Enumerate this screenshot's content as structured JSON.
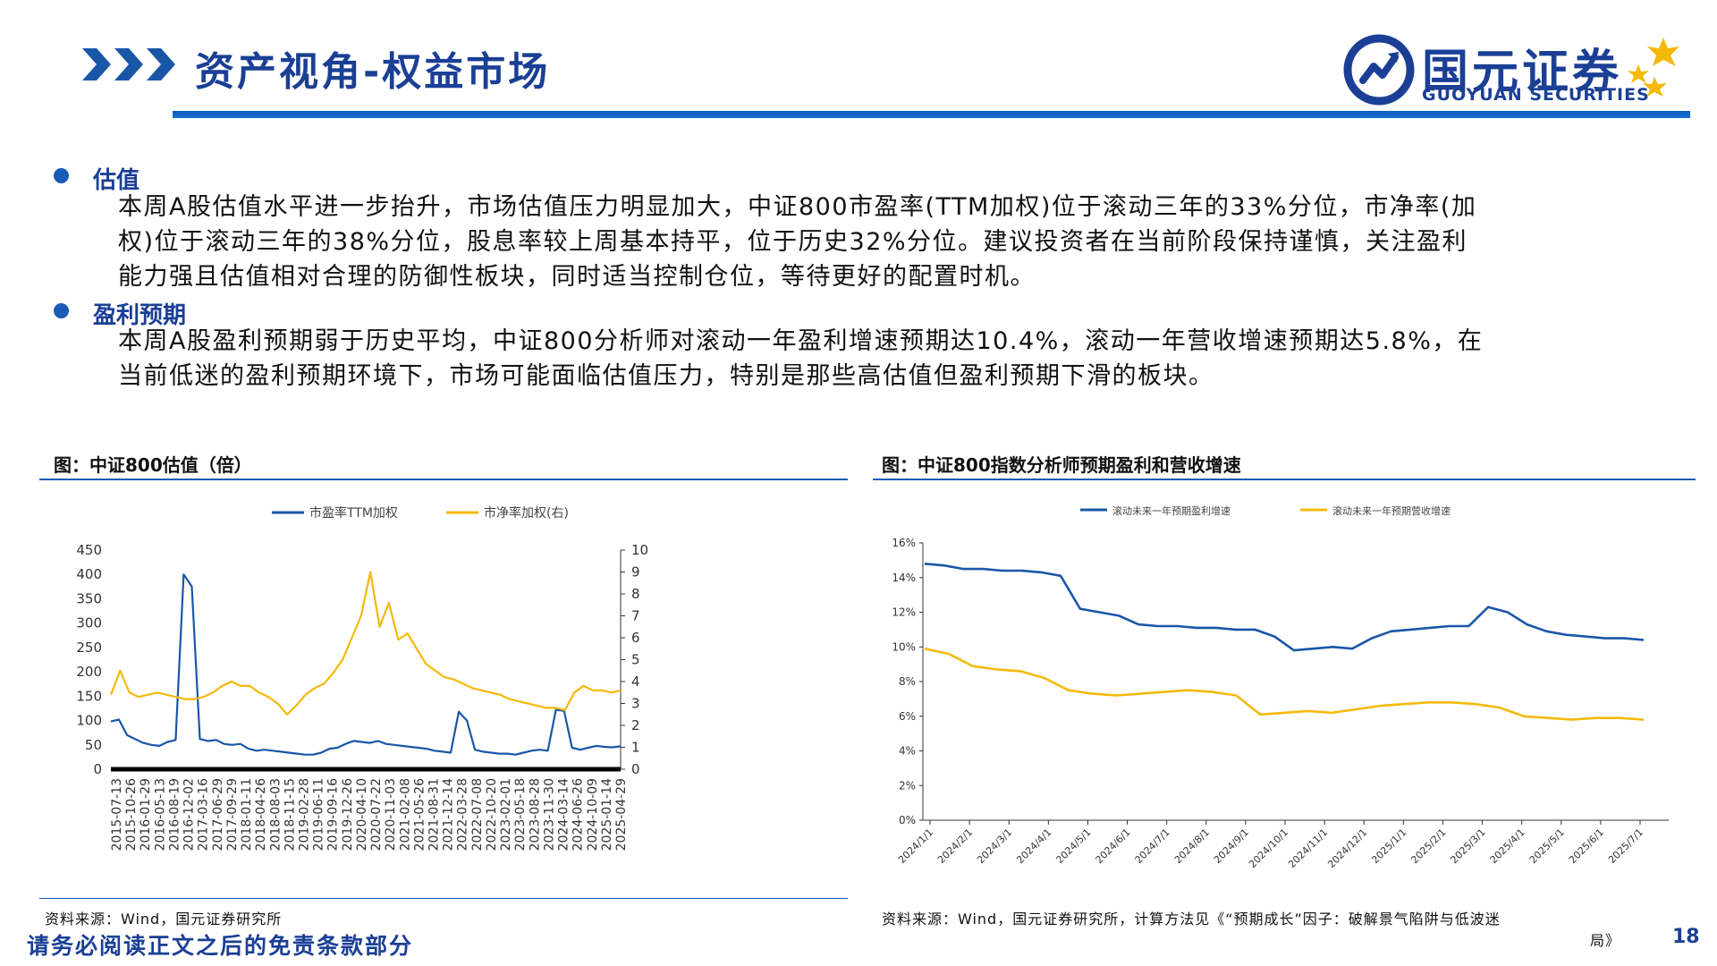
{
  "header": {
    "title": "资产视角-权益市场",
    "logo_cn": "国元证券",
    "logo_en": "GUOYUAN SECURITIES"
  },
  "sections": [
    {
      "heading": "估值",
      "lines": [
        "本周A股估值水平进一步抬升，市场估值压力明显加大，中证800市盈率(TTM加权)位于滚动三年的33%分位，市净率(加",
        "权)位于滚动三年的38%分位，股息率较上周基本持平，位于历史32%分位。建议投资者在当前阶段保持谨慎，关注盈利",
        "能力强且估值相对合理的防御性板块，同时适当控制仓位，等待更好的配置时机。"
      ]
    },
    {
      "heading": "盈利预期",
      "lines": [
        "本周A股盈利预期弱于历史平均，中证800分析师对滚动一年盈利增速预期达10.4%，滚动一年营收增速预期达5.8%，在",
        "当前低迷的盈利预期环境下，市场可能面临估值压力，特别是那些高估值但盈利预期下滑的板块。"
      ]
    }
  ],
  "figure_left": {
    "caption": "图：中证800估值（倍）",
    "source": "资料来源：Wind，国元证券研究所"
  },
  "figure_right": {
    "caption": "图：中证800指数分析师预期盈利和营收增速",
    "source_line1": "资料来源：Wind，国元证券研究所，计算方法见《“预期成长”因子：破解景气陷阱与低波迷",
    "source_line2": "局》"
  },
  "footer": {
    "disclaimer": "请务必阅读正文之后的免责条款部分",
    "page_number": "18"
  },
  "colors": {
    "blue": "#1a56a8",
    "gold": "#f5b90a",
    "brand": "#1a3f95"
  },
  "chart_data": [
    {
      "type": "line",
      "title": "图：中证800估值（倍）",
      "legend": [
        "市盈率TTM加权",
        "市净率加权(右)"
      ],
      "legend_position": "top-center",
      "y_left": {
        "min": 0,
        "max": 450,
        "ticks": [
          "450",
          "400",
          "350",
          "300",
          "250",
          "200",
          "150",
          "100",
          "50",
          "0"
        ]
      },
      "y_right": {
        "min": 0,
        "max": 10,
        "ticks": [
          "10",
          "9",
          "8",
          "7",
          "6",
          "5",
          "4",
          "3",
          "2",
          "1",
          "0"
        ]
      },
      "x_ticks": [
        "2015-07-13",
        "2015-10-26",
        "2016-01-29",
        "2016-05-13",
        "2016-08-19",
        "2016-12-02",
        "2017-03-16",
        "2017-06-29",
        "2017-09-29",
        "2018-01-11",
        "2018-04-26",
        "2018-08-03",
        "2018-11-15",
        "2019-02-28",
        "2019-06-11",
        "2019-09-16",
        "2019-12-26",
        "2020-04-10",
        "2020-07-22",
        "2020-11-03",
        "2021-02-08",
        "2021-05-26",
        "2021-08-31",
        "2021-12-14",
        "2022-03-28",
        "2022-07-08",
        "2022-10-20",
        "2023-02-01",
        "2023-05-18",
        "2023-08-28",
        "2023-11-30",
        "2024-03-14",
        "2024-06-26",
        "2024-10-09",
        "2025-01-14",
        "2025-04-29"
      ],
      "series": [
        {
          "name": "市盈率TTM加权",
          "axis": "left",
          "values": [
            98,
            102,
            70,
            62,
            54,
            50,
            48,
            56,
            60,
            400,
            375,
            62,
            58,
            60,
            52,
            50,
            52,
            42,
            38,
            40,
            38,
            36,
            34,
            32,
            30,
            30,
            34,
            42,
            44,
            52,
            58,
            56,
            54,
            58,
            52,
            50,
            48,
            46,
            44,
            42,
            38,
            36,
            34,
            118,
            100,
            40,
            36,
            34,
            32,
            32,
            30,
            34,
            38,
            40,
            38,
            122,
            120,
            44,
            40,
            44,
            48,
            46,
            45,
            47
          ]
        },
        {
          "name": "市净率加权(右)",
          "axis": "right",
          "values": [
            3.4,
            4.5,
            3.5,
            3.3,
            3.4,
            3.5,
            3.4,
            3.3,
            3.2,
            3.2,
            3.3,
            3.5,
            3.8,
            4.0,
            3.8,
            3.8,
            3.5,
            3.3,
            3.0,
            2.5,
            2.9,
            3.4,
            3.7,
            3.9,
            4.4,
            5.0,
            6.0,
            7.0,
            9.0,
            6.5,
            7.6,
            5.9,
            6.2,
            5.5,
            4.8,
            4.5,
            4.2,
            4.1,
            3.9,
            3.7,
            3.6,
            3.5,
            3.4,
            3.2,
            3.1,
            3.0,
            2.9,
            2.8,
            2.8,
            2.7,
            3.5,
            3.8,
            3.6,
            3.6,
            3.5,
            3.6
          ]
        }
      ]
    },
    {
      "type": "line",
      "title": "图：中证800指数分析师预期盈利和营收增速",
      "legend": [
        "滚动未来一年预期盈利增速",
        "滚动未来一年预期营收增速"
      ],
      "legend_position": "top-center",
      "y": {
        "min": 0,
        "max": 16,
        "ticks": [
          "16%",
          "14%",
          "12%",
          "10%",
          "8%",
          "6%",
          "4%",
          "2%",
          "0%"
        ]
      },
      "x_ticks": [
        "2024/1/1",
        "2024/2/1",
        "2024/3/1",
        "2024/4/1",
        "2024/5/1",
        "2024/6/1",
        "2024/7/1",
        "2024/8/1",
        "2024/9/1",
        "2024/10/1",
        "2024/11/1",
        "2024/12/1",
        "2025/1/1",
        "2025/2/1",
        "2025/3/1",
        "2025/4/1",
        "2025/5/1",
        "2025/6/1",
        "2025/7/1"
      ],
      "series": [
        {
          "name": "滚动未来一年预期盈利增速",
          "values": [
            14.8,
            14.7,
            14.5,
            14.5,
            14.4,
            14.4,
            14.3,
            14.1,
            12.2,
            12.0,
            11.8,
            11.3,
            11.2,
            11.2,
            11.1,
            11.1,
            11.0,
            11.0,
            10.6,
            9.8,
            9.9,
            10.0,
            9.9,
            10.5,
            10.9,
            11.0,
            11.1,
            11.2,
            11.2,
            12.3,
            12.0,
            11.3,
            10.9,
            10.7,
            10.6,
            10.5,
            10.5,
            10.4
          ]
        },
        {
          "name": "滚动未来一年预期营收增速",
          "values": [
            9.9,
            9.6,
            8.9,
            8.7,
            8.6,
            8.2,
            7.5,
            7.3,
            7.2,
            7.3,
            7.4,
            7.5,
            7.4,
            7.2,
            6.1,
            6.2,
            6.3,
            6.2,
            6.4,
            6.6,
            6.7,
            6.8,
            6.8,
            6.7,
            6.5,
            6.0,
            5.9,
            5.8,
            5.9,
            5.9,
            5.8
          ]
        }
      ]
    }
  ]
}
